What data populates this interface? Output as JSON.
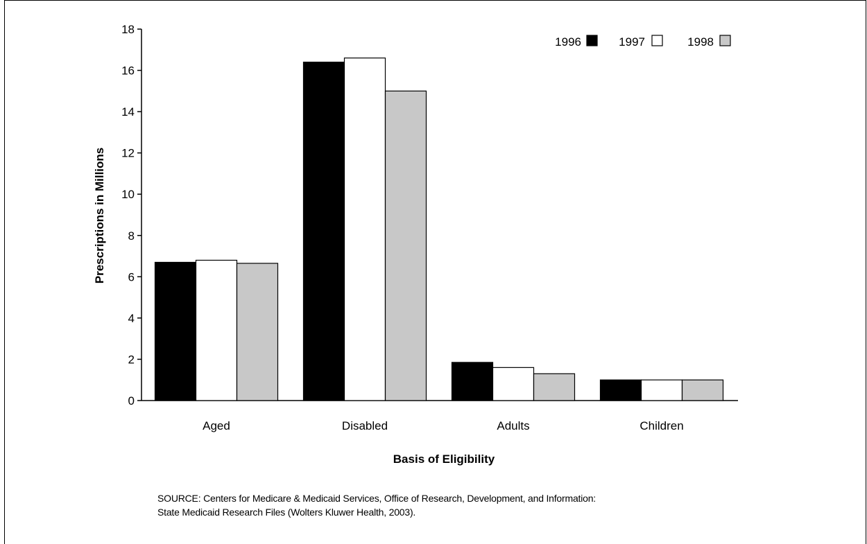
{
  "chart_data": {
    "type": "bar",
    "categories": [
      "Aged",
      "Disabled",
      "Adults",
      "Children"
    ],
    "series": [
      {
        "name": "1996",
        "values": [
          6.7,
          16.4,
          1.85,
          1.0
        ],
        "color": "#000000"
      },
      {
        "name": "1997",
        "values": [
          6.8,
          16.6,
          1.6,
          1.0
        ],
        "color": "#ffffff"
      },
      {
        "name": "1998",
        "values": [
          6.65,
          15.0,
          1.3,
          1.0
        ],
        "color": "#c8c8c8"
      }
    ],
    "ylim": [
      0,
      18
    ],
    "yticks": [
      "0",
      "2",
      "4",
      "6",
      "8",
      "10",
      "12",
      "14",
      "16",
      "18"
    ],
    "xlabel": "Basis of Eligibility",
    "ylabel": "Prescriptions in Millions",
    "legend_position": "top-right",
    "grid": false
  },
  "source": {
    "line1": "SOURCE: Centers for Medicare & Medicaid Services, Office of Research, Development, and Information:",
    "line2": "State Medicaid Research Files (Wolters Kluwer Health, 2003)."
  }
}
